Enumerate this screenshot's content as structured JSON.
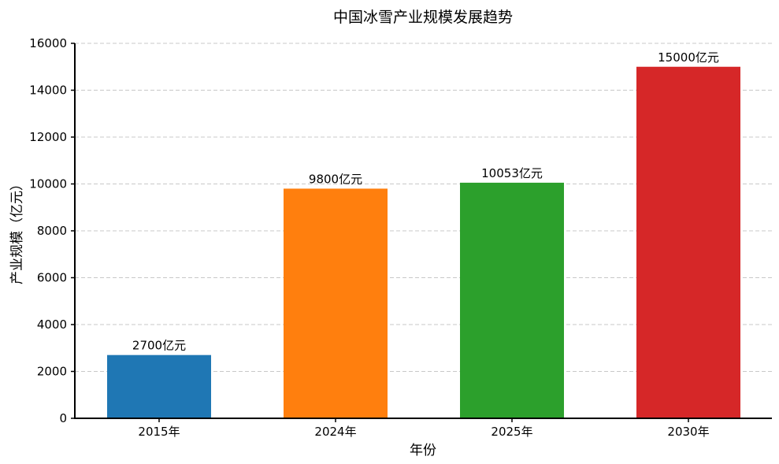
{
  "chart_data": {
    "type": "bar",
    "title": "中国冰雪产业规模发展趋势",
    "xlabel": "年份",
    "ylabel": "产业规模（亿元）",
    "categories": [
      "2015年",
      "2024年",
      "2025年",
      "2030年"
    ],
    "values": [
      2700,
      9800,
      10053,
      15000
    ],
    "data_labels": [
      "2700亿元",
      "9800亿元",
      "10053亿元",
      "15000亿元"
    ],
    "colors": [
      "#1f77b4",
      "#ff7f0e",
      "#2ca02c",
      "#d62728"
    ],
    "ylim": [
      0,
      16000
    ],
    "yticks": [
      0,
      2000,
      4000,
      6000,
      8000,
      10000,
      12000,
      14000,
      16000
    ],
    "grid": "horizontal dashed",
    "legend": "none"
  }
}
